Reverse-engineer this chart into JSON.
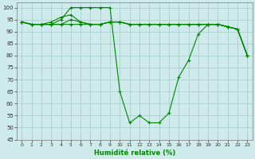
{
  "xlabel": "Humidité relative (%)",
  "background_color": "#ceeaea",
  "grid_color": "#aacfcf",
  "line_color": "#008800",
  "xlim": [
    -0.5,
    23.5
  ],
  "ylim": [
    45,
    102
  ],
  "yticks": [
    45,
    50,
    55,
    60,
    65,
    70,
    75,
    80,
    85,
    90,
    95,
    100
  ],
  "xticks": [
    0,
    1,
    2,
    3,
    4,
    5,
    6,
    7,
    8,
    9,
    10,
    11,
    12,
    13,
    14,
    15,
    16,
    17,
    18,
    19,
    20,
    21,
    22,
    23
  ],
  "series": [
    [
      94,
      93,
      93,
      93,
      95,
      100,
      100,
      100,
      100,
      100,
      65,
      52,
      55,
      52,
      52,
      56,
      71,
      78,
      89,
      93,
      93,
      92,
      91,
      80
    ],
    [
      94,
      93,
      93,
      94,
      96,
      97,
      94,
      93,
      93,
      94,
      94,
      93,
      93,
      93,
      93,
      93,
      93,
      93,
      93,
      93,
      93,
      92,
      91,
      80
    ],
    [
      94,
      93,
      93,
      93,
      93,
      95,
      94,
      93,
      93,
      94,
      94,
      93,
      93,
      93,
      93,
      93,
      93,
      93,
      93,
      93,
      93,
      92,
      91,
      80
    ],
    [
      94,
      93,
      93,
      93,
      93,
      93,
      93,
      93,
      93,
      94,
      94,
      93,
      93,
      93,
      93,
      93,
      93,
      93,
      93,
      93,
      93,
      92,
      91,
      80
    ]
  ]
}
